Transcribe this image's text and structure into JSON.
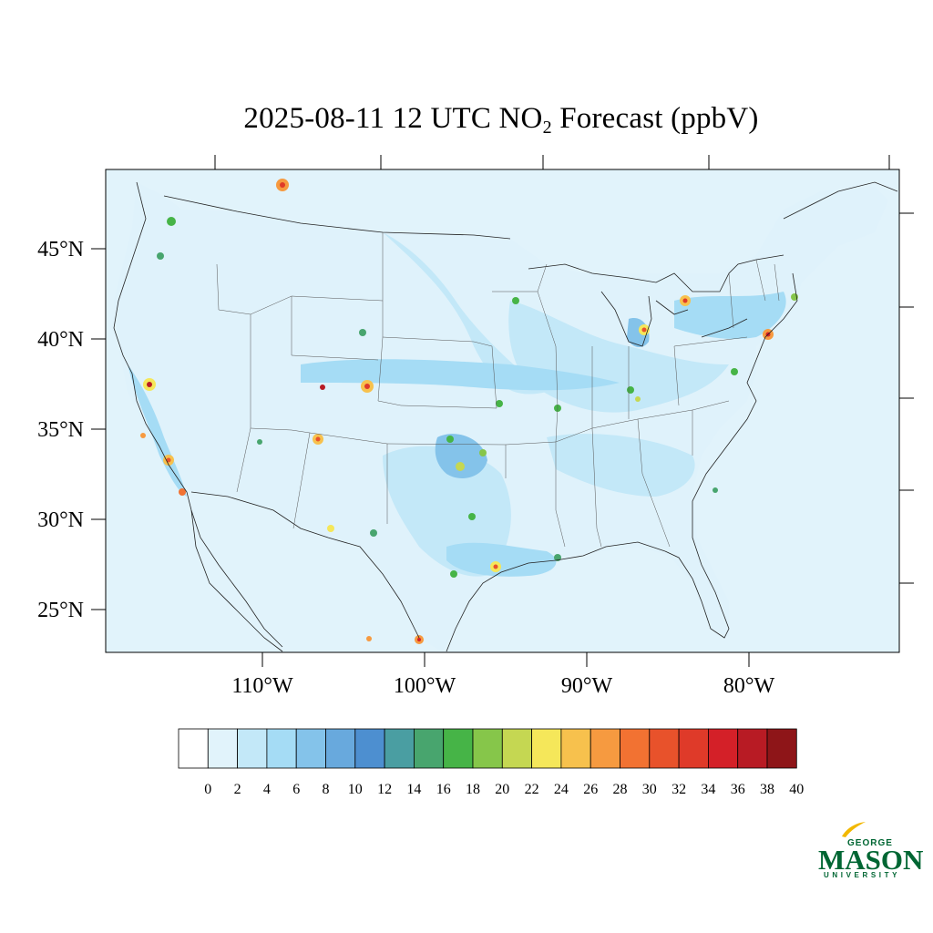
{
  "title": {
    "prefix": "2025-08-11 12 UTC NO",
    "subscript": "2",
    "suffix": " Forecast (ppbV)"
  },
  "axes": {
    "lat_labels": [
      "45°N",
      "40°N",
      "35°N",
      "30°N",
      "25°N"
    ],
    "lon_labels": [
      "110°W",
      "100°W",
      "90°W",
      "80°W"
    ]
  },
  "colorbar": {
    "labels": [
      "0",
      "2",
      "4",
      "6",
      "8",
      "10",
      "12",
      "14",
      "16",
      "18",
      "20",
      "22",
      "24",
      "26",
      "28",
      "30",
      "32",
      "34",
      "36",
      "38",
      "40"
    ],
    "colors": [
      "#ffffff",
      "#e1f3fb",
      "#c3e8f8",
      "#a5dcf5",
      "#84c3ea",
      "#68a9dd",
      "#4d8fd0",
      "#4a9ea2",
      "#48a56e",
      "#46b447",
      "#86c64a",
      "#c5d752",
      "#f5e75a",
      "#f7c14d",
      "#f69a40",
      "#f27232",
      "#e8522b",
      "#df3a29",
      "#d42028",
      "#b81b24",
      "#8e1518"
    ]
  },
  "colors": {
    "ocean": "#e1f3fb",
    "land_base": "#dff2fb",
    "low": "#c3e8f8",
    "mid": "#a5dcf5",
    "high": "#84c3ea"
  },
  "logo": {
    "line1": "GEORGE",
    "line2": "MASON",
    "line3": "UNIVERSITY"
  }
}
